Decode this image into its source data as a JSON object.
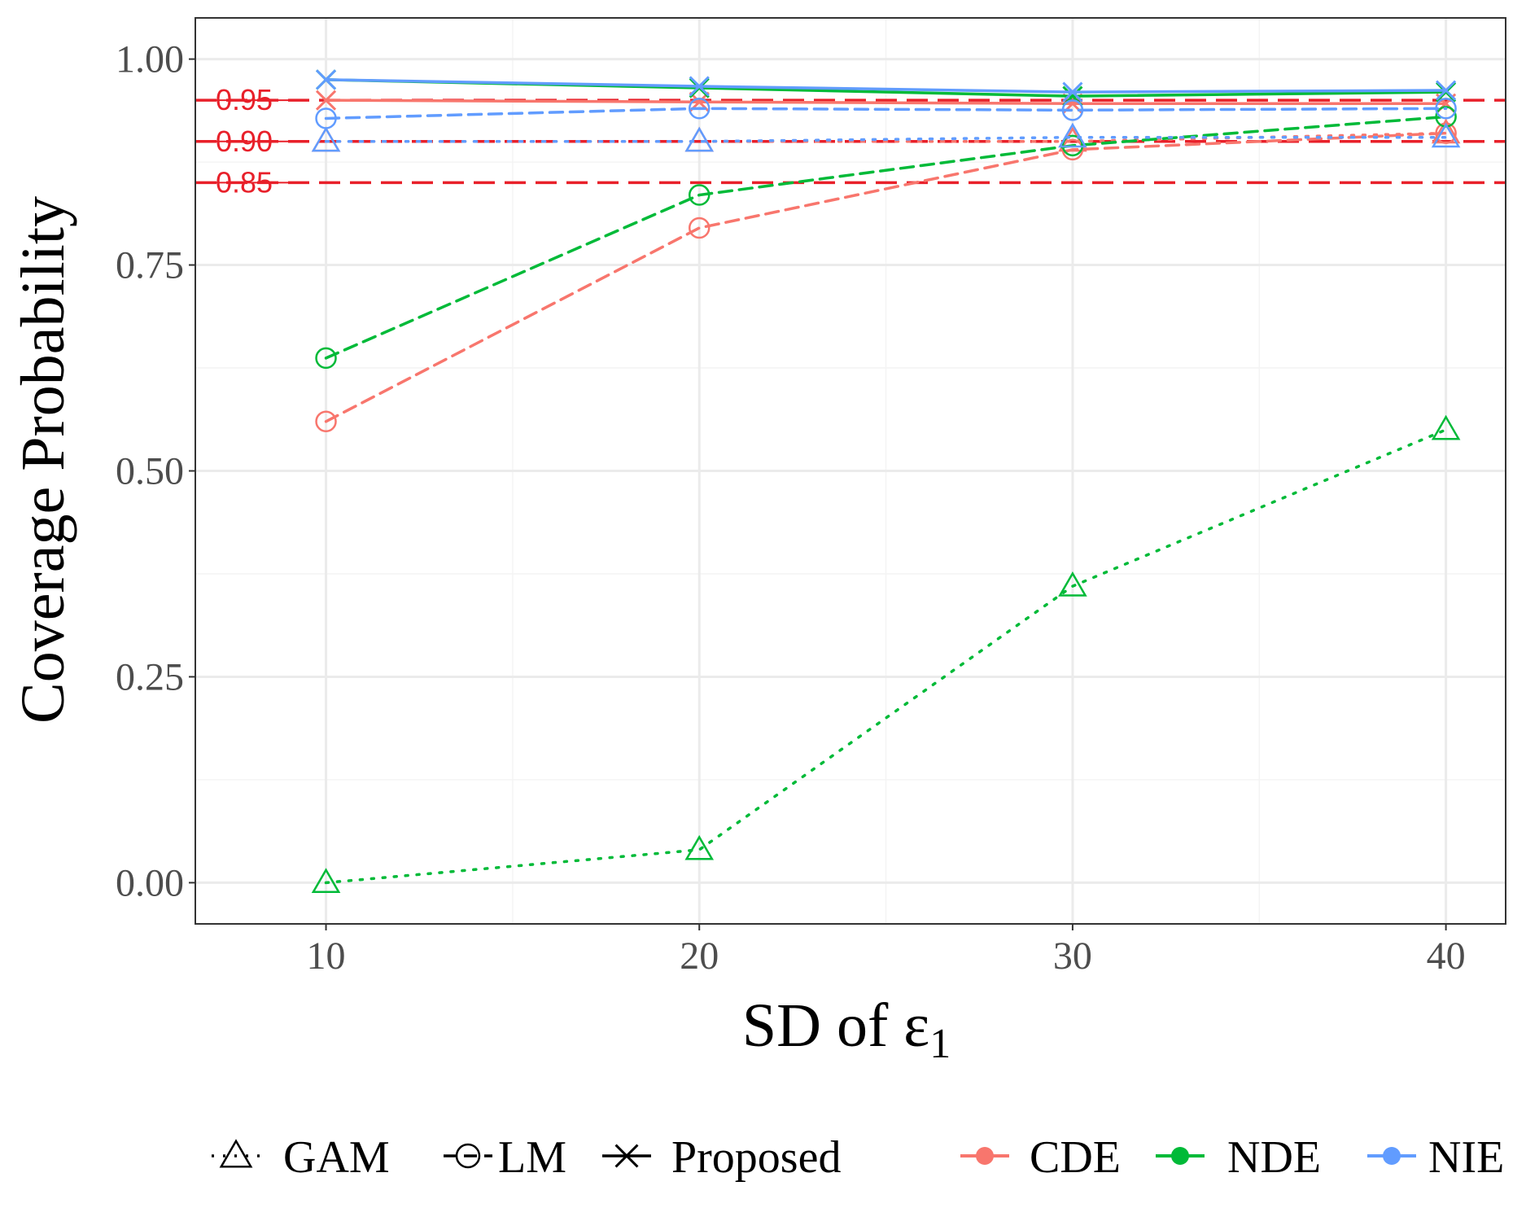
{
  "colors": {
    "CDE": "#F8766D",
    "NDE": "#00BA38",
    "NIE": "#619CFF",
    "reference": "#E8202A",
    "grid_major": "#EBEBEB",
    "grid_minor": "#F4F4F4",
    "panel_border": "#333333"
  },
  "chart_data": {
    "type": "line",
    "title": "",
    "xlabel": "SD of ε",
    "xlabel_subscript": "1",
    "ylabel": "Coverage Probability",
    "x": [
      10,
      20,
      30,
      40
    ],
    "xlim": [
      6.5,
      41.6
    ],
    "ylim": [
      -0.05,
      1.05
    ],
    "x_ticks": [
      10,
      20,
      30,
      40
    ],
    "x_tick_labels": [
      "10",
      "20",
      "30",
      "40"
    ],
    "y_ticks": [
      0,
      0.25,
      0.5,
      0.75,
      1.0
    ],
    "y_tick_labels": [
      "0.00",
      "0.25",
      "0.50",
      "0.75",
      "1.00"
    ],
    "y_minor_ticks": [
      0.125,
      0.375,
      0.625,
      0.875
    ],
    "x_minor_ticks": [
      15,
      25,
      35
    ],
    "grid": true,
    "reference_lines": [
      {
        "value": 0.95,
        "label": "0.95"
      },
      {
        "value": 0.9,
        "label": "0.90"
      },
      {
        "value": 0.85,
        "label": "0.85"
      }
    ],
    "series": [
      {
        "name": "CDE GAM",
        "effect": "CDE",
        "method": "GAM",
        "values": [
          0.9,
          0.9,
          0.9,
          0.91
        ]
      },
      {
        "name": "CDE LM",
        "effect": "CDE",
        "method": "LM",
        "values": [
          0.56,
          0.795,
          0.89,
          0.91
        ]
      },
      {
        "name": "CDE Proposed",
        "effect": "CDE",
        "method": "Proposed",
        "values": [
          0.95,
          0.948,
          0.946,
          0.946
        ]
      },
      {
        "name": "NDE GAM",
        "effect": "NDE",
        "method": "GAM",
        "values": [
          0.0,
          0.04,
          0.36,
          0.55
        ]
      },
      {
        "name": "NDE LM",
        "effect": "NDE",
        "method": "LM",
        "values": [
          0.637,
          0.835,
          0.895,
          0.93
        ]
      },
      {
        "name": "NDE Proposed",
        "effect": "NDE",
        "method": "Proposed",
        "values": [
          0.975,
          0.965,
          0.955,
          0.96
        ]
      },
      {
        "name": "NIE GAM",
        "effect": "NIE",
        "method": "GAM",
        "values": [
          0.9,
          0.9,
          0.905,
          0.905
        ]
      },
      {
        "name": "NIE LM",
        "effect": "NIE",
        "method": "LM",
        "values": [
          0.928,
          0.94,
          0.938,
          0.94
        ]
      },
      {
        "name": "NIE Proposed",
        "effect": "NIE",
        "method": "Proposed",
        "values": [
          0.975,
          0.967,
          0.96,
          0.962
        ]
      }
    ],
    "legend": {
      "placement": "bottom",
      "method_entries": [
        "GAM",
        "LM",
        "Proposed"
      ],
      "effect_entries": [
        "CDE",
        "NDE",
        "NIE"
      ]
    }
  }
}
